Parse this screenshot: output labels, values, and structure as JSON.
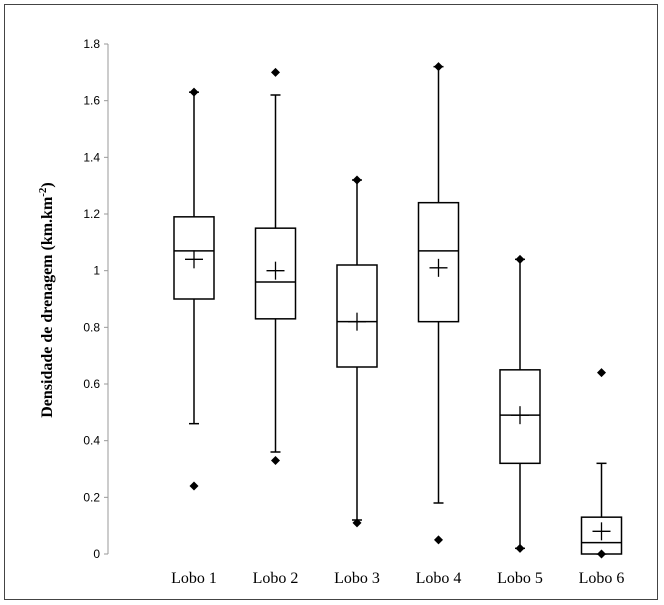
{
  "chart_data": {
    "type": "boxplot",
    "title": "",
    "xlabel": "",
    "ylabel": "Densidade de drenagem (km.km",
    "ylabel_superscript": "-2",
    "ylabel_suffix": ")",
    "ylim": [
      0,
      1.8
    ],
    "yticks": [
      0,
      0.2,
      0.4,
      0.6,
      0.8,
      1,
      1.2,
      1.4,
      1.6,
      1.8
    ],
    "ytick_labels": [
      "0",
      "0.2",
      "0.4",
      "0.6",
      "0.8",
      "1",
      "1.2",
      "1.4",
      "1.6",
      "1.8"
    ],
    "grid": false,
    "categories": [
      "Lobo 1",
      "Lobo 2",
      "Lobo 3",
      "Lobo 4",
      "Lobo 5",
      "Lobo 6"
    ],
    "boxes": [
      {
        "whisker_low": 0.46,
        "q1": 0.9,
        "median": 1.07,
        "q3": 1.19,
        "whisker_high": 1.63,
        "mean": 1.04,
        "outliers": [
          0.24,
          1.63
        ]
      },
      {
        "whisker_low": 0.36,
        "q1": 0.83,
        "median": 0.96,
        "q3": 1.15,
        "whisker_high": 1.62,
        "mean": 1.0,
        "outliers": [
          0.33,
          1.7
        ]
      },
      {
        "whisker_low": 0.12,
        "q1": 0.66,
        "median": 0.82,
        "q3": 1.02,
        "whisker_high": 1.32,
        "mean": 0.82,
        "outliers": [
          0.11,
          1.32
        ]
      },
      {
        "whisker_low": 0.18,
        "q1": 0.82,
        "median": 1.07,
        "q3": 1.24,
        "whisker_high": 1.72,
        "mean": 1.01,
        "outliers": [
          0.05,
          1.72
        ]
      },
      {
        "whisker_low": 0.02,
        "q1": 0.32,
        "median": 0.49,
        "q3": 0.65,
        "whisker_high": 1.04,
        "mean": 0.49,
        "outliers": [
          0.02,
          1.04
        ]
      },
      {
        "whisker_low": 0.0,
        "q1": 0.0,
        "median": 0.04,
        "q3": 0.13,
        "whisker_high": 0.32,
        "mean": 0.08,
        "outliers": [
          0.0,
          0.64
        ]
      }
    ]
  }
}
